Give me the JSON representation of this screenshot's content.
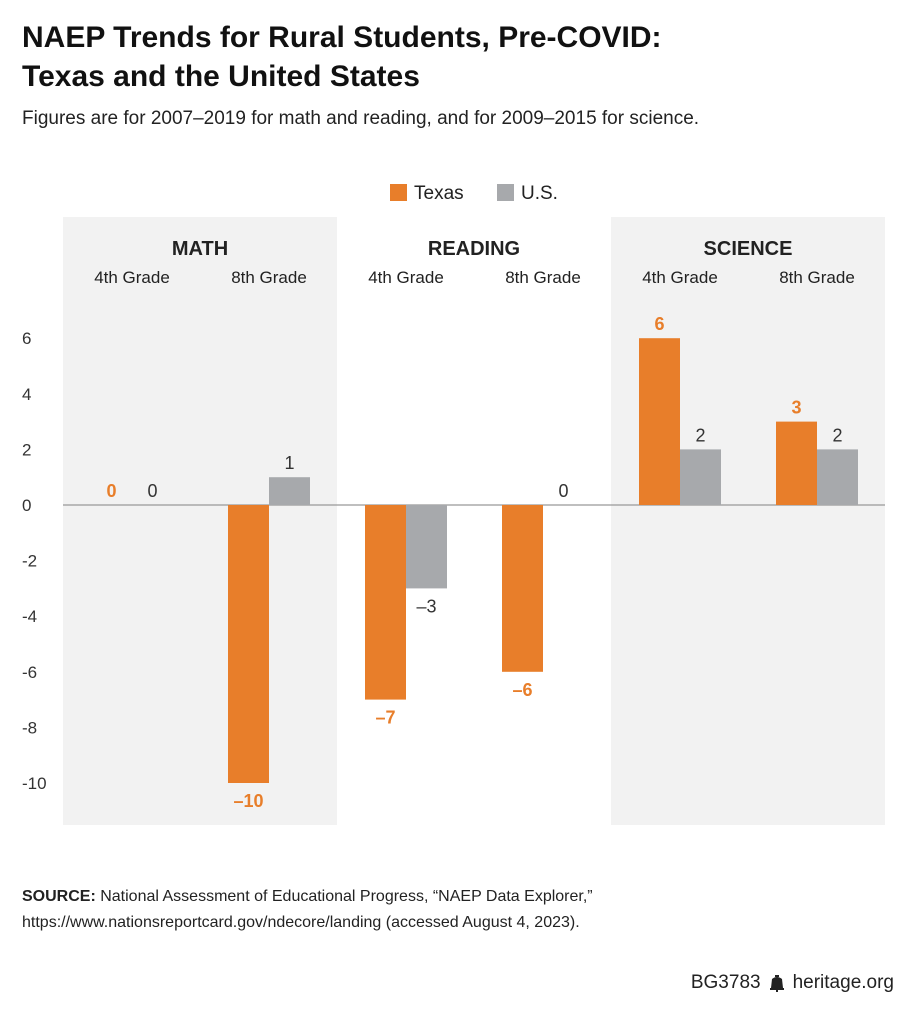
{
  "header": {
    "title_line1": "NAEP Trends for Rural Students, Pre-COVID:",
    "title_line2": "Texas and the United States",
    "subtitle": "Figures are for 2007–2019 for math and reading, and for 2009–2015 for science."
  },
  "colors": {
    "texas": "#E87E2A",
    "us": "#A7A9AC",
    "panel": "#F2F2F2",
    "axis": "#999999"
  },
  "chart_data": {
    "type": "bar",
    "legend": [
      "Texas",
      "U.S."
    ],
    "legend_placement": "top-center",
    "ylim": [
      -11.5,
      7.5
    ],
    "yticks": [
      6,
      4,
      2,
      0,
      -2,
      -4,
      -6,
      -8,
      -10
    ],
    "ytick_labels": [
      "6",
      "4",
      "2",
      "0",
      "-2",
      "-4",
      "-6",
      "-8",
      "-10"
    ],
    "groups": [
      {
        "subject": "MATH",
        "shaded": true,
        "grades": [
          {
            "grade": "4th Grade",
            "texas": 0,
            "us": 0,
            "texas_label": "0",
            "us_label": "0"
          },
          {
            "grade": "8th Grade",
            "texas": -10,
            "us": 1,
            "texas_label": "–10",
            "us_label": "1"
          }
        ]
      },
      {
        "subject": "READING",
        "shaded": false,
        "grades": [
          {
            "grade": "4th Grade",
            "texas": -7,
            "us": -3,
            "texas_label": "–7",
            "us_label": "–3"
          },
          {
            "grade": "8th Grade",
            "texas": -6,
            "us": 0,
            "texas_label": "–6",
            "us_label": "0"
          }
        ]
      },
      {
        "subject": "SCIENCE",
        "shaded": true,
        "grades": [
          {
            "grade": "4th Grade",
            "texas": 6,
            "us": 2,
            "texas_label": "6",
            "us_label": "2"
          },
          {
            "grade": "8th Grade",
            "texas": 3,
            "us": 2,
            "texas_label": "3",
            "us_label": "2"
          }
        ]
      }
    ]
  },
  "source": {
    "label": "SOURCE:",
    "text": " National Assessment of Educational Progress, “NAEP Data Explorer,” https://www.nationsreportcard.gov/ndecore/landing (accessed August 4, 2023)."
  },
  "footer": {
    "code": "BG3783",
    "site": "heritage.org"
  }
}
